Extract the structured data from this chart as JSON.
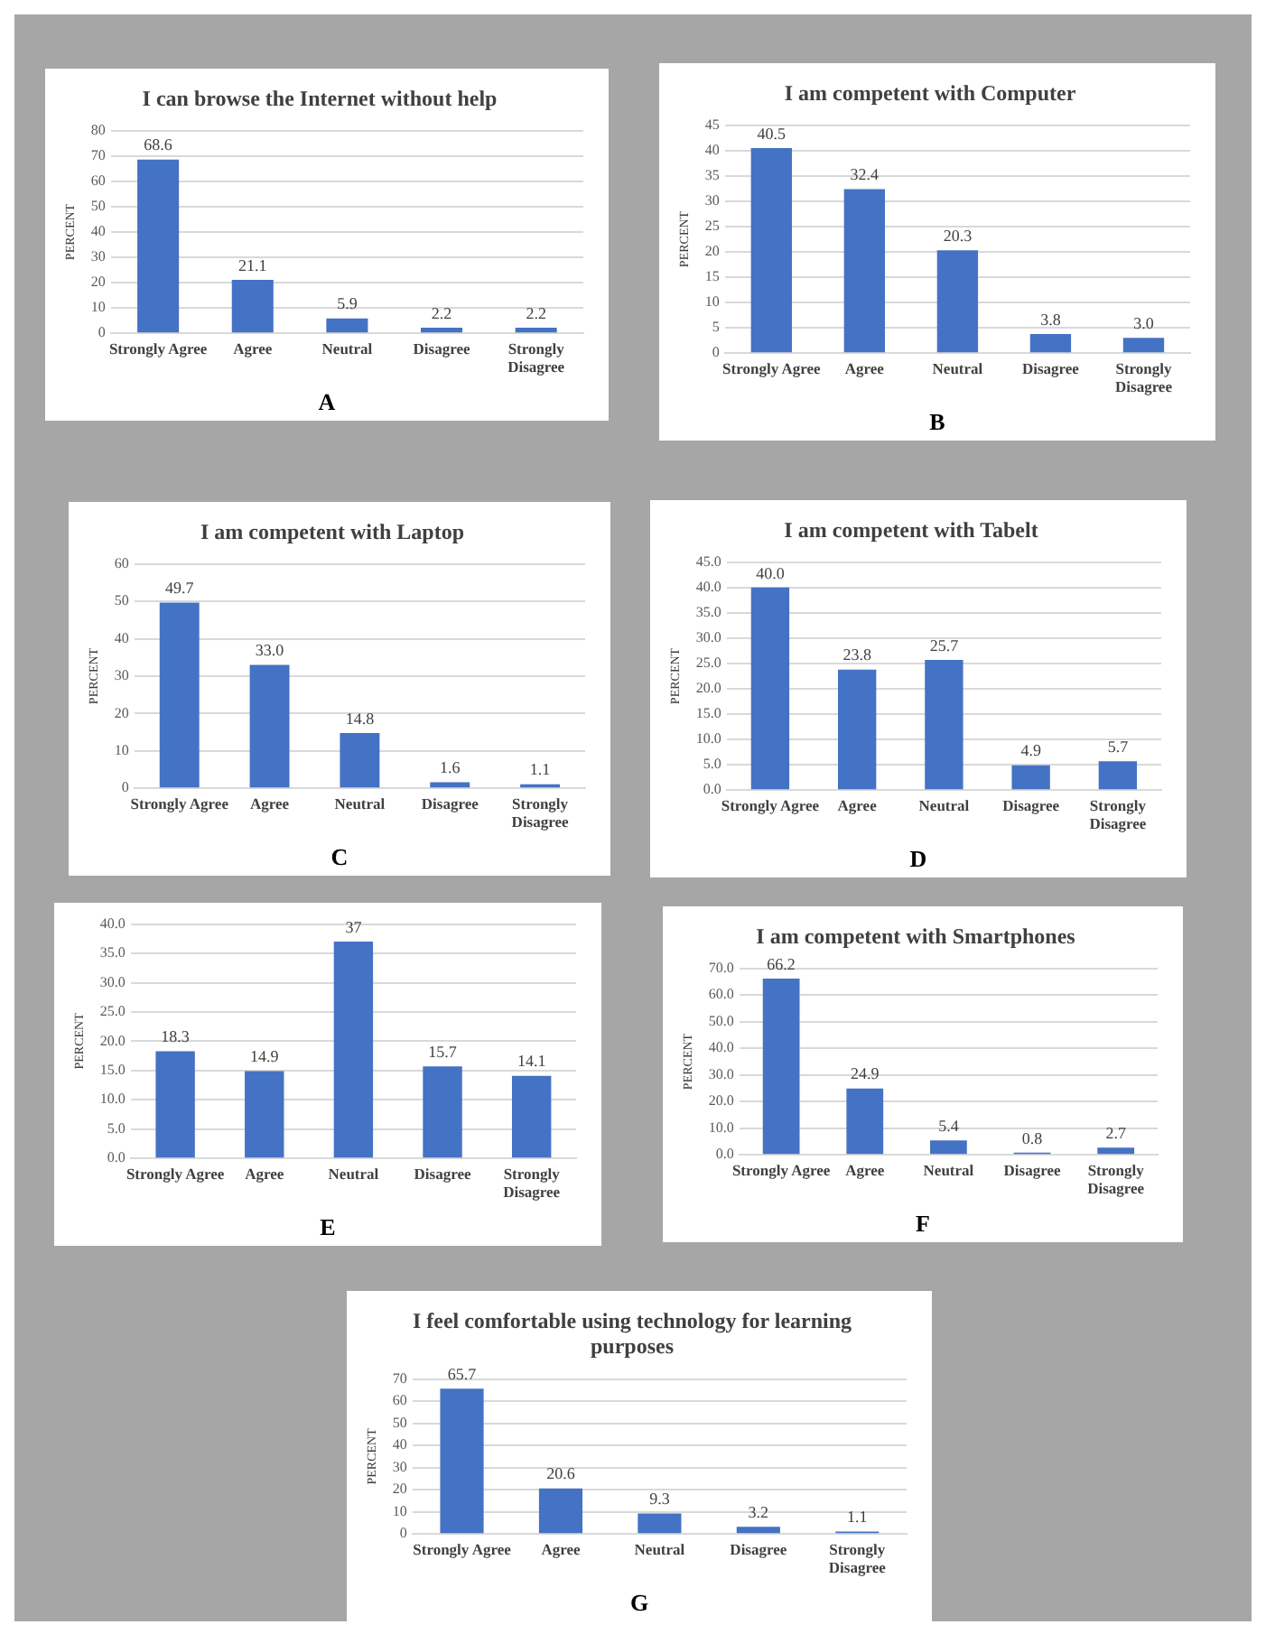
{
  "chart_data": [
    {
      "type": "bar",
      "title": "I can browse the Internet without help",
      "ylabel": "PERCENT",
      "categories": [
        "Strongly Agree",
        "Agree",
        "Neutral",
        "Disagree",
        "Strongly Disagree"
      ],
      "values": [
        68.6,
        21.1,
        5.9,
        2.2,
        2.2
      ],
      "value_labels": [
        "68.6",
        "21.1",
        "5.9",
        "2.2",
        "2.2"
      ],
      "color": "#4472c4",
      "ylim": [
        0,
        80
      ],
      "yticks": [
        0,
        10,
        20,
        30,
        40,
        50,
        60,
        70,
        80
      ],
      "grid": "y",
      "annotations": [
        "A"
      ]
    },
    {
      "type": "bar",
      "title": "I am competent with Computer",
      "ylabel": "PERCENT",
      "categories": [
        "Strongly Agree",
        "Agree",
        "Neutral",
        "Disagree",
        "Strongly Disagree"
      ],
      "values": [
        40.5,
        32.4,
        20.3,
        3.8,
        3.0
      ],
      "value_labels": [
        "40.5",
        "32.4",
        "20.3",
        "3.8",
        "3.0"
      ],
      "color": "#4472c4",
      "ylim": [
        0,
        45
      ],
      "yticks": [
        0,
        5,
        10,
        15,
        20,
        25,
        30,
        35,
        40,
        45
      ],
      "grid": "y",
      "annotations": [
        "B"
      ]
    },
    {
      "type": "bar",
      "title": "I am competent with Laptop",
      "ylabel": "PERCENT",
      "categories": [
        "Strongly Agree",
        "Agree",
        "Neutral",
        "Disagree",
        "Strongly Disagree"
      ],
      "values": [
        49.7,
        33.0,
        14.8,
        1.6,
        1.1
      ],
      "value_labels": [
        "49.7",
        "33.0",
        "14.8",
        "1.6",
        "1.1"
      ],
      "color": "#4472c4",
      "ylim": [
        0,
        60
      ],
      "yticks": [
        0,
        10,
        20,
        30,
        40,
        50,
        60
      ],
      "grid": "y",
      "annotations": [
        "C"
      ]
    },
    {
      "type": "bar",
      "title": "I am competent with Tabelt",
      "ylabel": "PERCENT",
      "categories": [
        "Strongly Agree",
        "Agree",
        "Neutral",
        "Disagree",
        "Strongly Disagree"
      ],
      "values": [
        40.0,
        23.8,
        25.7,
        4.9,
        5.7
      ],
      "value_labels": [
        "40.0",
        "23.8",
        "25.7",
        "4.9",
        "5.7"
      ],
      "color": "#4472c4",
      "ylim": [
        0,
        45
      ],
      "yticks": [
        {
          "value": 0,
          "label": "0.0"
        },
        {
          "value": 5,
          "label": "5.0"
        },
        {
          "value": 10,
          "label": "10.0"
        },
        {
          "value": 15,
          "label": "15.0"
        },
        {
          "value": 20,
          "label": "20.0"
        },
        {
          "value": 25,
          "label": "25.0"
        },
        {
          "value": 30,
          "label": "30.0"
        },
        {
          "value": 35,
          "label": "35.0"
        },
        {
          "value": 40,
          "label": "40.0"
        },
        {
          "value": 45,
          "label": "45.0"
        }
      ],
      "grid": "y",
      "annotations": [
        "D"
      ]
    },
    {
      "type": "bar",
      "ylabel": "PERCENT",
      "categories": [
        "Strongly Agree",
        "Agree",
        "Neutral",
        "Disagree",
        "Strongly Disagree"
      ],
      "values": [
        18.3,
        14.9,
        37,
        15.7,
        14.1
      ],
      "value_labels": [
        "18.3",
        "14.9",
        "37",
        "15.7",
        "14.1"
      ],
      "color": "#4472c4",
      "ylim": [
        0,
        40
      ],
      "yticks": [
        {
          "value": 0,
          "label": "0.0"
        },
        {
          "value": 5,
          "label": "5.0"
        },
        {
          "value": 10,
          "label": "10.0"
        },
        {
          "value": 15,
          "label": "15.0"
        },
        {
          "value": 20,
          "label": "20.0"
        },
        {
          "value": 25,
          "label": "25.0"
        },
        {
          "value": 30,
          "label": "30.0"
        },
        {
          "value": 35,
          "label": "35.0"
        },
        {
          "value": 40,
          "label": "40.0"
        }
      ],
      "grid": "y",
      "annotations": [
        "E"
      ]
    },
    {
      "type": "bar",
      "title": "I am competent with Smartphones",
      "ylabel": "PERCENT",
      "categories": [
        "Strongly Agree",
        "Agree",
        "Neutral",
        "Disagree",
        "Strongly Disagree"
      ],
      "values": [
        66.2,
        24.9,
        5.4,
        0.8,
        2.7
      ],
      "value_labels": [
        "66.2",
        "24.9",
        "5.4",
        "0.8",
        "2.7"
      ],
      "color": "#4472c4",
      "ylim": [
        0,
        70
      ],
      "yticks": [
        {
          "value": 0,
          "label": "0.0"
        },
        {
          "value": 10,
          "label": "10.0"
        },
        {
          "value": 20,
          "label": "20.0"
        },
        {
          "value": 30,
          "label": "30.0"
        },
        {
          "value": 40,
          "label": "40.0"
        },
        {
          "value": 50,
          "label": "50.0"
        },
        {
          "value": 60,
          "label": "60.0"
        },
        {
          "value": 70,
          "label": "70.0"
        }
      ],
      "grid": "y",
      "annotations": [
        "F"
      ]
    },
    {
      "type": "bar",
      "title": "I feel comfortable using technology for learning purposes",
      "ylabel": "PERCENT",
      "categories": [
        "Strongly Agree",
        "Agree",
        "Neutral",
        "Disagree",
        "Strongly Disagree"
      ],
      "values": [
        65.7,
        20.6,
        9.3,
        3.2,
        1.1
      ],
      "value_labels": [
        "65.7",
        "20.6",
        "9.3",
        "3.2",
        "1.1"
      ],
      "color": "#4472c4",
      "ylim": [
        0,
        70
      ],
      "yticks": [
        0,
        10,
        20,
        30,
        40,
        50,
        60,
        70
      ],
      "grid": "y",
      "annotations": [
        "G"
      ]
    }
  ]
}
